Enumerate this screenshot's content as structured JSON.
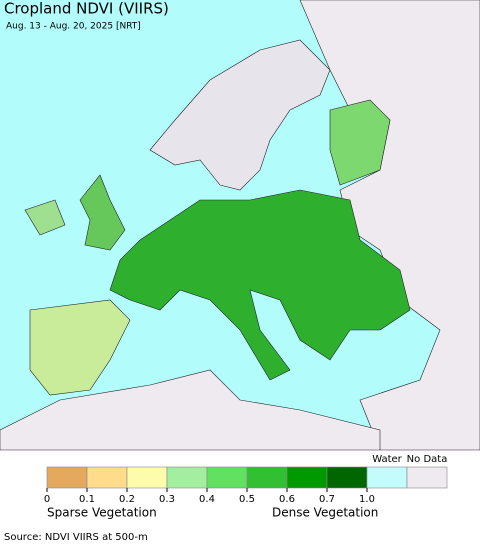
{
  "header": {
    "title": "Cropland NDVI (VIIRS)",
    "subtitle": "Aug. 13 - Aug. 20, 2025 [NRT]"
  },
  "legend": {
    "ticks": [
      "0",
      "0.1",
      "0.2",
      "0.3",
      "0.4",
      "0.5",
      "0.6",
      "0.7",
      "1.0"
    ],
    "colors": [
      "#e4a85e",
      "#fedc8c",
      "#fcfcac",
      "#a4eea0",
      "#62e062",
      "#32c032",
      "#009a00",
      "#006600",
      "#c4fcfc",
      "#eeeaf0"
    ],
    "water_label": "Water",
    "nodata_label": "No Data",
    "sparse_label": "Sparse Vegetation",
    "dense_label": "Dense Vegetation"
  },
  "footer": {
    "source": "Source: NDVI VIIRS at 500-m"
  }
}
